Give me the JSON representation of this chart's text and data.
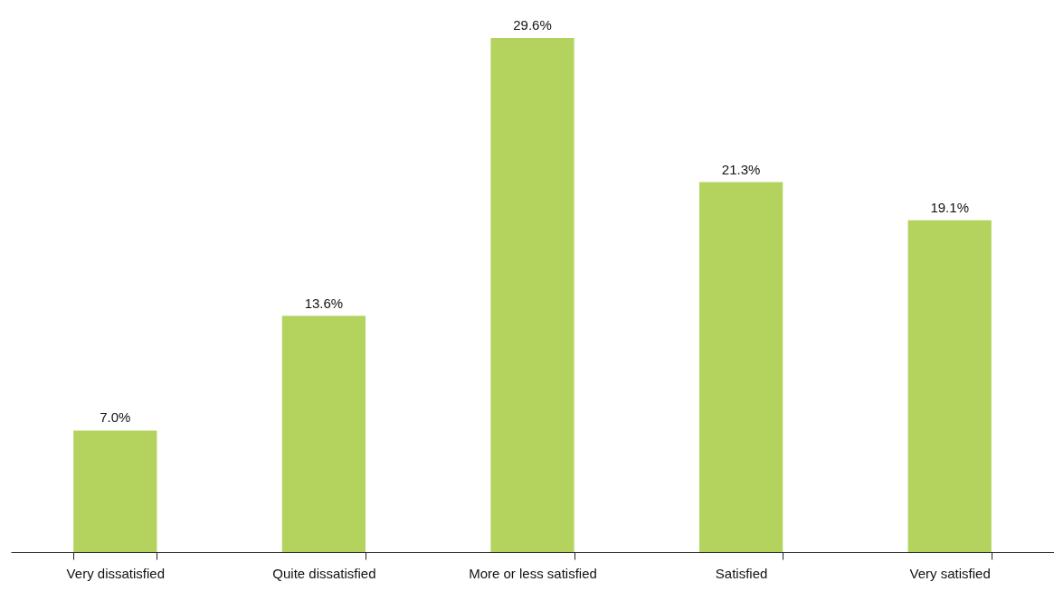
{
  "chart_data": {
    "type": "bar",
    "categories": [
      "Very dissatisfied",
      "Quite dissatisfied",
      "More or less satisfied",
      "Satisfied",
      "Very satisfied"
    ],
    "values": [
      7.0,
      13.6,
      29.6,
      21.3,
      19.1
    ],
    "value_labels": [
      "7.0%",
      "13.6%",
      "29.6%",
      "21.3%",
      "19.1%"
    ],
    "color": "#b3d35e"
  }
}
